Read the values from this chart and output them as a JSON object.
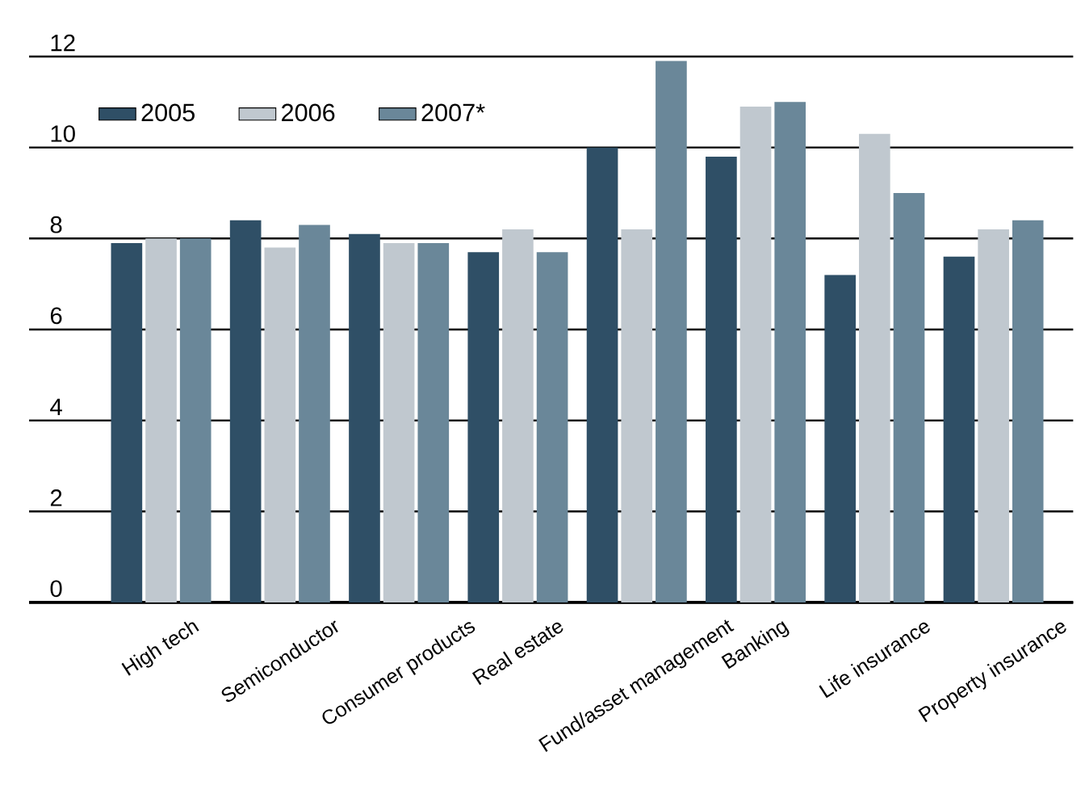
{
  "chart_data": {
    "type": "bar",
    "categories": [
      "High tech",
      "Semiconductor",
      "Consumer products",
      "Real estate",
      "Fund/asset management",
      "Banking",
      "Life insurance",
      "Property insurance"
    ],
    "series": [
      {
        "name": "2005",
        "color": "#2f4f66",
        "values": [
          7.9,
          8.4,
          8.1,
          7.7,
          10.0,
          9.8,
          7.2,
          7.6
        ]
      },
      {
        "name": "2006",
        "color": "#c0c8cf",
        "values": [
          8.0,
          7.8,
          7.9,
          8.2,
          8.2,
          10.9,
          10.3,
          8.2
        ]
      },
      {
        "name": "2007*",
        "color": "#6a8799",
        "values": [
          8.0,
          8.3,
          7.9,
          7.7,
          11.9,
          11.0,
          9.0,
          8.4
        ]
      }
    ],
    "ylim": [
      0,
      12
    ],
    "yticks": [
      0,
      2,
      4,
      6,
      8,
      10,
      12
    ],
    "grid": "y",
    "legend": "top left"
  }
}
